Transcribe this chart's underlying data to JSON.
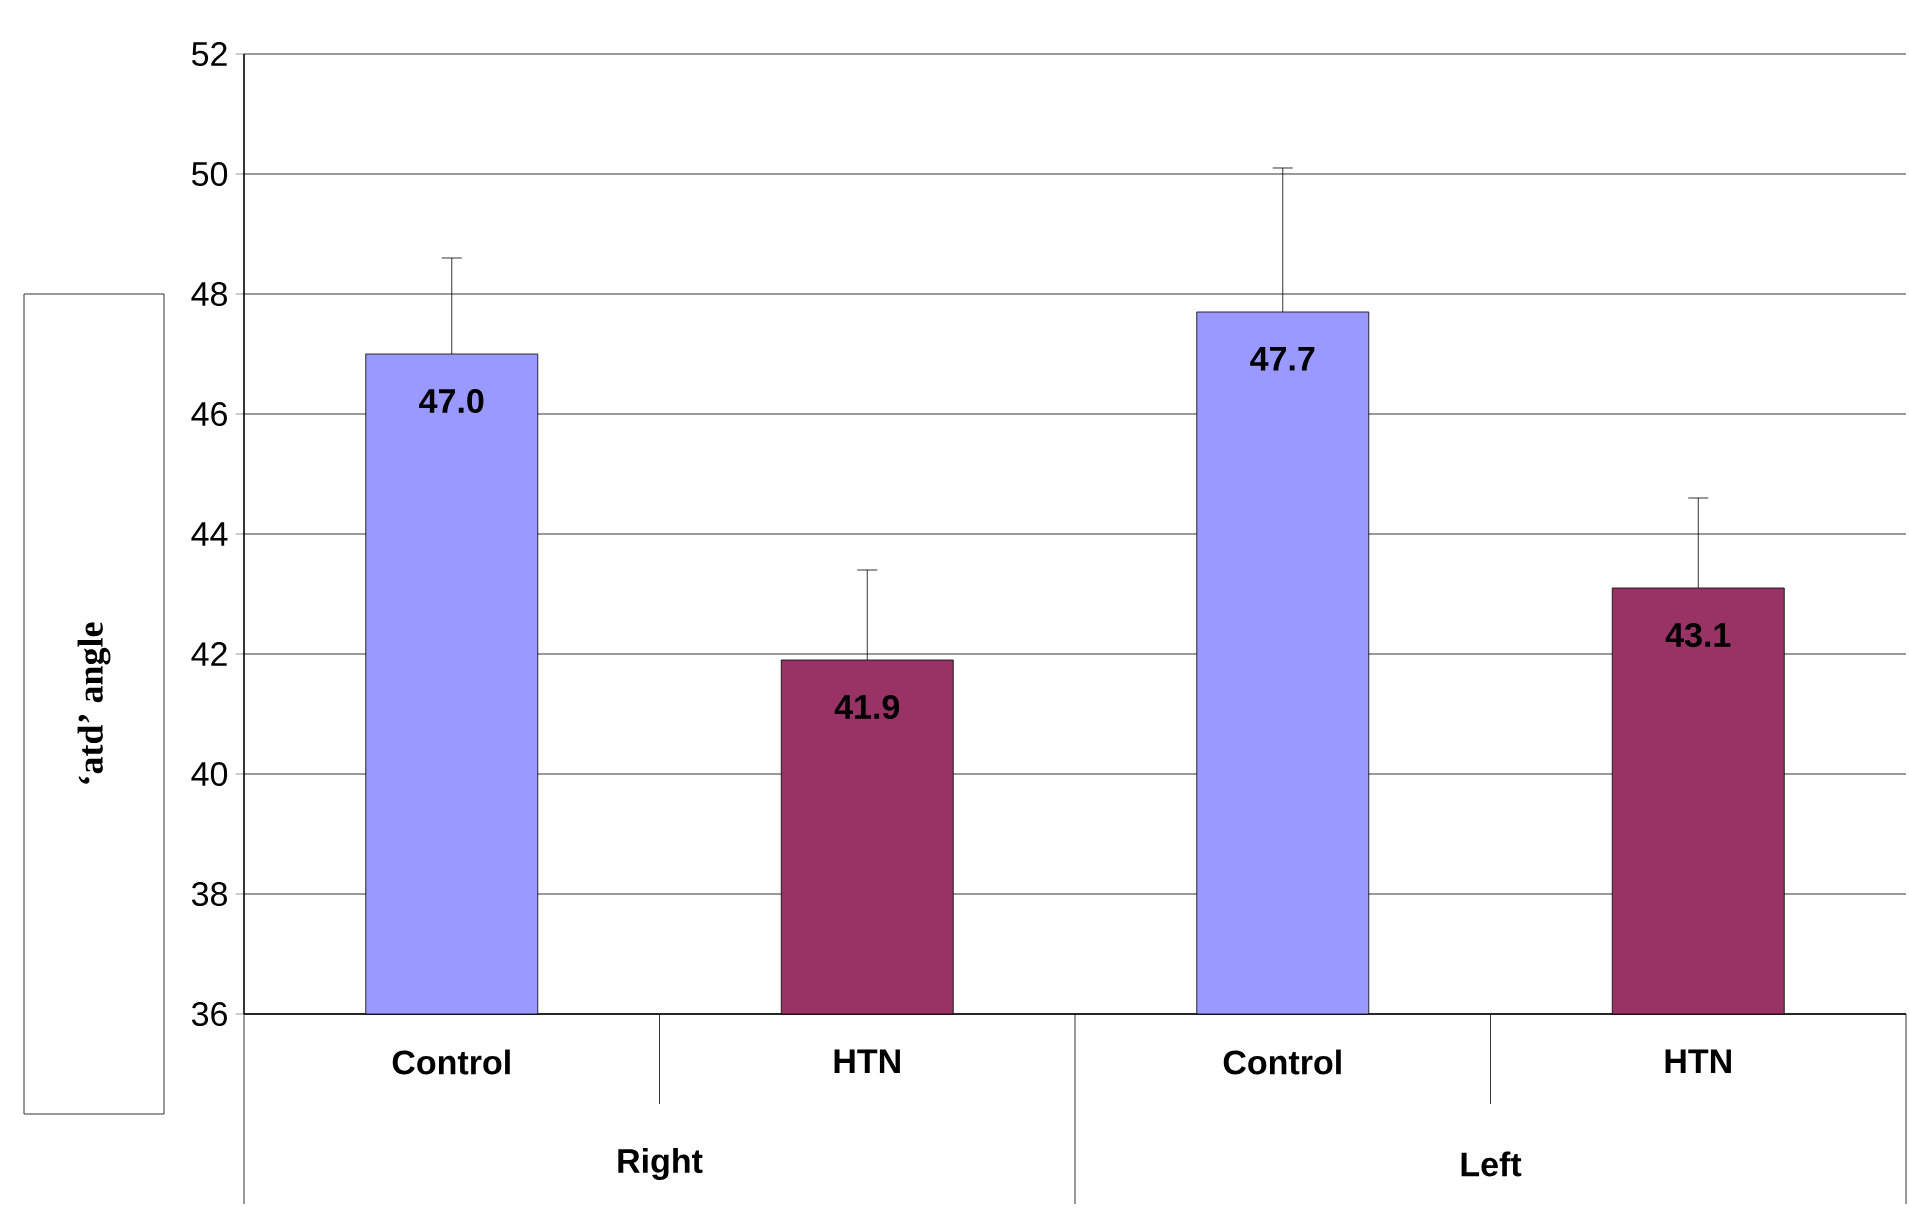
{
  "chart_data": {
    "type": "bar",
    "ylabel": "‘atd’ angle",
    "categories": [
      "Control",
      "HTN",
      "Control",
      "HTN"
    ],
    "values": [
      47.0,
      41.9,
      47.7,
      43.1
    ],
    "colors": [
      "#9999ff",
      "#993366",
      "#9999ff",
      "#993366"
    ],
    "value_labels": [
      "47.0",
      "41.9",
      "47.7",
      "43.1"
    ],
    "errors": [
      [
        47.0,
        48.6
      ],
      [
        41.9,
        43.4
      ],
      [
        47.7,
        50.1
      ],
      [
        43.1,
        44.6
      ]
    ],
    "annotations": [
      "Right",
      "Left"
    ],
    "ylim": [
      36,
      52
    ],
    "yticks": [
      36,
      38,
      40,
      42,
      44,
      46,
      48,
      50,
      52
    ],
    "grid": "y"
  }
}
